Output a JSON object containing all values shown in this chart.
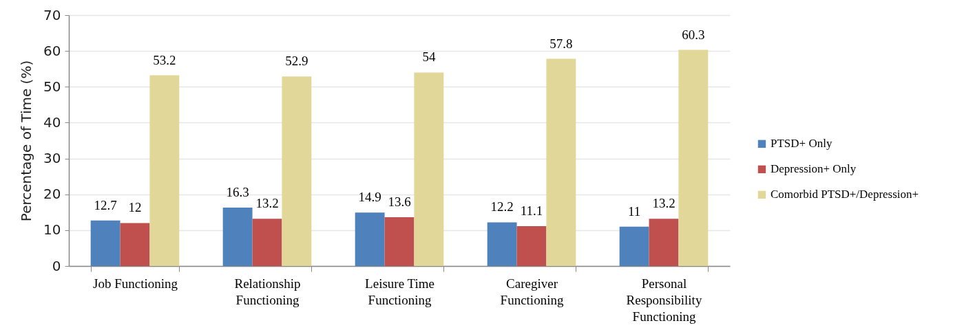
{
  "chart_data": {
    "type": "bar",
    "ylabel": "Percentage of Time (%)",
    "categories": [
      "Job Functioning",
      "Relationship Functioning",
      "Leisure Time Functioning",
      "Caregiver Functioning",
      "Personal Responsibility Functioning"
    ],
    "series": [
      {
        "name": "PTSD+ Only",
        "color": "#4f81bd",
        "values": [
          12.7,
          16.3,
          14.9,
          12.2,
          11
        ]
      },
      {
        "name": "Depression+ Only",
        "color": "#c0504d",
        "values": [
          12,
          13.2,
          13.6,
          11.1,
          13.2
        ]
      },
      {
        "name": "Comorbid PTSD+/Depression+",
        "color": "#e1d798",
        "values": [
          53.2,
          52.9,
          54,
          57.8,
          60.3
        ]
      }
    ],
    "ylim": [
      0,
      70
    ],
    "yticks": [
      0,
      10,
      20,
      30,
      40,
      50,
      60,
      70
    ],
    "grid": "y",
    "legend": "right",
    "data_labels": true
  }
}
